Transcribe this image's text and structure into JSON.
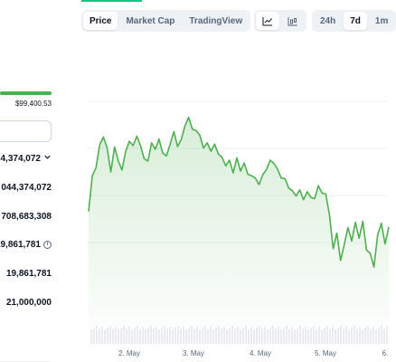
{
  "stats": {
    "range_high": "$99,400.53",
    "range_progress": 1.0,
    "market_cap_partial": "4,374,072",
    "fdv_partial": "044,374,072",
    "volume_partial": "708,683,308",
    "circulating_partial": "19,861,781",
    "total_supply": "19,861,781",
    "max_supply": "21,000,000"
  },
  "chart_tabs": {
    "price": "Price",
    "market_cap": "Market Cap",
    "trading_view": "TradingView"
  },
  "range_tabs": {
    "h24": "24h",
    "d7": "7d",
    "m1": "1m"
  },
  "colors": {
    "accent_green": "#16c784",
    "line_green": "#4eaf4f"
  },
  "chart_data": {
    "type": "line",
    "x_labels": [
      "2. May",
      "3. May",
      "4. May",
      "5. May",
      "6."
    ],
    "y": [
      6.6,
      14.2,
      15.9,
      20.8,
      22.4,
      20.1,
      15.0,
      20.3,
      17.4,
      15.4,
      19.4,
      21.5,
      20.6,
      22.6,
      20.6,
      17.8,
      17.3,
      21.2,
      19.8,
      22.0,
      19.0,
      18.4,
      20.9,
      23.6,
      20.4,
      21.9,
      24.8,
      26.6,
      24.1,
      23.8,
      22.8,
      20.1,
      21.2,
      19.4,
      20.9,
      18.8,
      18.1,
      16.3,
      17.5,
      14.8,
      18.0,
      15.2,
      16.9,
      14.5,
      14.2,
      13.7,
      12.3,
      14.4,
      15.5,
      17.5,
      16.8,
      15.6,
      13.7,
      13.6,
      11.6,
      11.0,
      9.9,
      11.2,
      9.1,
      10.8,
      9.6,
      9.3,
      12.1,
      10.5,
      10.3,
      5.9,
      -1.3,
      2.0,
      -3.8,
      -0.4,
      3.2,
      0.3,
      4.3,
      0.9,
      4.5,
      -1.6,
      -2.3,
      -5.2,
      1.6,
      4.1,
      -0.3,
      3.3
    ],
    "y_range": [
      -10,
      40
    ],
    "grid": true,
    "volume_bars": true
  }
}
